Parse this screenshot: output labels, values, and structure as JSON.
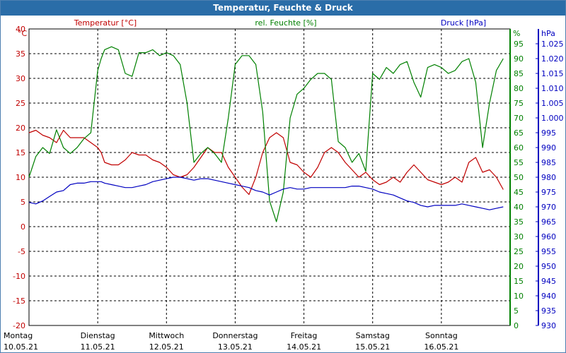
{
  "window": {
    "title": "Temperatur, Feuchte & Druck"
  },
  "colors": {
    "temperature": "#c00000",
    "humidity": "#008000",
    "pressure": "#0000c0",
    "grid": "#000000",
    "title_bar": "#2a6da8"
  },
  "chart_data": {
    "type": "line",
    "title": "Temperatur, Feuchte & Druck",
    "grid": true,
    "x_categories": [
      {
        "day": "Montag",
        "date": "10.05.21"
      },
      {
        "day": "Dienstag",
        "date": "11.05.21"
      },
      {
        "day": "Mittwoch",
        "date": "12.05.21"
      },
      {
        "day": "Donnerstag",
        "date": "13.05.21"
      },
      {
        "day": "Freitag",
        "date": "14.05.21"
      },
      {
        "day": "Samstag",
        "date": "15.05.21"
      },
      {
        "day": "Sonntag",
        "date": "16.05.21"
      }
    ],
    "xlim": [
      0,
      7
    ],
    "axes": {
      "temperature": {
        "label": "Temperatur [°C]",
        "unit": "°C",
        "ylim": [
          -20,
          40
        ],
        "ticks": [
          "40",
          "35",
          "30",
          "25",
          "20",
          "15",
          "10",
          "5",
          "0",
          "-5",
          "-10",
          "-15",
          "-20"
        ]
      },
      "humidity": {
        "label": "rel. Feuchte [%]",
        "unit": "%",
        "ylim": [
          0,
          100
        ],
        "ticks": [
          "95",
          "90",
          "85",
          "80",
          "75",
          "70",
          "65",
          "60",
          "55",
          "50",
          "45",
          "40",
          "35",
          "30",
          "25",
          "20",
          "15",
          "10",
          "5",
          "0"
        ]
      },
      "pressure": {
        "label": "Druck [hPa]",
        "unit": "hPa",
        "ylim": [
          930,
          1030
        ],
        "ticks": [
          "1.025",
          "1.020",
          "1.015",
          "1.010",
          "1.005",
          "1.000",
          "995",
          "990",
          "985",
          "980",
          "975",
          "970",
          "965",
          "960",
          "955",
          "950",
          "945",
          "940",
          "935",
          "930"
        ]
      }
    },
    "series": [
      {
        "name": "Temperatur [°C]",
        "axis": "temperature",
        "x": [
          0,
          0.1,
          0.2,
          0.3,
          0.4,
          0.5,
          0.6,
          0.7,
          0.8,
          0.9,
          1.0,
          1.05,
          1.1,
          1.2,
          1.3,
          1.4,
          1.5,
          1.6,
          1.7,
          1.8,
          1.9,
          2.0,
          2.1,
          2.2,
          2.3,
          2.4,
          2.5,
          2.6,
          2.7,
          2.8,
          2.9,
          3.0,
          3.1,
          3.2,
          3.3,
          3.4,
          3.5,
          3.6,
          3.7,
          3.8,
          3.9,
          4.0,
          4.1,
          4.2,
          4.3,
          4.4,
          4.5,
          4.6,
          4.7,
          4.8,
          4.9,
          5.0,
          5.1,
          5.2,
          5.3,
          5.4,
          5.5,
          5.6,
          5.7,
          5.8,
          5.9,
          6.0,
          6.1,
          6.2,
          6.3,
          6.4,
          6.5,
          6.6,
          6.7,
          6.8,
          6.9
        ],
        "values": [
          19,
          19.5,
          18.5,
          18,
          17,
          19.5,
          18,
          18,
          18,
          17,
          16,
          15,
          13,
          12.5,
          12.5,
          13.5,
          15,
          14.5,
          14.5,
          13.5,
          13,
          12,
          10.5,
          10,
          10.5,
          12,
          14,
          16,
          15,
          15,
          12,
          10,
          8,
          6.5,
          10,
          15,
          18,
          19,
          18,
          13,
          12.5,
          11,
          10,
          12,
          15,
          16,
          15,
          13,
          11.5,
          10,
          11,
          9.5,
          8.5,
          9,
          10,
          9,
          11,
          12.5,
          11,
          9.5,
          9,
          8.5,
          9,
          10,
          9,
          13,
          14,
          11,
          11.5,
          10,
          7.5
        ]
      },
      {
        "name": "rel. Feuchte [%]",
        "axis": "humidity",
        "x": [
          0,
          0.1,
          0.2,
          0.3,
          0.4,
          0.5,
          0.6,
          0.7,
          0.8,
          0.9,
          1.0,
          1.05,
          1.1,
          1.2,
          1.3,
          1.4,
          1.5,
          1.6,
          1.7,
          1.8,
          1.9,
          2.0,
          2.1,
          2.2,
          2.3,
          2.4,
          2.5,
          2.6,
          2.7,
          2.8,
          2.9,
          3.0,
          3.1,
          3.2,
          3.3,
          3.4,
          3.5,
          3.6,
          3.7,
          3.8,
          3.9,
          4.0,
          4.1,
          4.2,
          4.3,
          4.4,
          4.5,
          4.6,
          4.7,
          4.8,
          4.9,
          5.0,
          5.1,
          5.2,
          5.3,
          5.4,
          5.5,
          5.6,
          5.7,
          5.8,
          5.9,
          6.0,
          6.1,
          6.2,
          6.3,
          6.4,
          6.5,
          6.6,
          6.7,
          6.8,
          6.9
        ],
        "values": [
          50,
          57,
          60,
          58,
          66,
          60,
          58,
          60,
          63,
          65,
          86,
          90,
          93,
          94,
          93,
          85,
          84,
          92,
          92,
          93,
          91,
          92,
          91,
          88,
          75,
          55,
          58,
          60,
          58,
          55,
          70,
          88,
          91,
          91,
          88,
          72,
          42,
          35,
          45,
          70,
          78,
          80,
          83,
          85,
          85,
          83,
          62,
          60,
          55,
          58,
          52,
          85,
          83,
          87,
          85,
          88,
          89,
          82,
          77,
          87,
          88,
          87,
          85,
          86,
          89,
          90,
          82,
          60,
          75,
          86,
          90
        ]
      },
      {
        "name": "Druck [hPa]",
        "axis": "pressure",
        "x": [
          0,
          0.1,
          0.2,
          0.3,
          0.4,
          0.5,
          0.6,
          0.7,
          0.8,
          0.9,
          1.0,
          1.05,
          1.1,
          1.2,
          1.3,
          1.4,
          1.5,
          1.6,
          1.7,
          1.8,
          1.9,
          2.0,
          2.1,
          2.2,
          2.3,
          2.4,
          2.5,
          2.6,
          2.7,
          2.8,
          2.9,
          3.0,
          3.1,
          3.2,
          3.3,
          3.4,
          3.5,
          3.6,
          3.7,
          3.8,
          3.9,
          4.0,
          4.1,
          4.2,
          4.3,
          4.4,
          4.5,
          4.6,
          4.7,
          4.8,
          4.9,
          5.0,
          5.1,
          5.2,
          5.3,
          5.4,
          5.5,
          5.6,
          5.7,
          5.8,
          5.9,
          6.0,
          6.1,
          6.2,
          6.3,
          6.4,
          6.5,
          6.6,
          6.7,
          6.8,
          6.9
        ],
        "values": [
          971.5,
          971,
          972,
          973.5,
          975,
          975.5,
          977.5,
          978,
          978,
          978.5,
          978.5,
          978.5,
          978,
          977.5,
          977,
          976.5,
          976.5,
          977,
          977.5,
          978.5,
          979,
          979.5,
          980,
          980,
          979.5,
          979,
          979.5,
          979.5,
          979,
          978.5,
          978,
          977.5,
          977,
          976.5,
          975.5,
          975,
          974,
          975,
          976,
          976.5,
          976,
          976,
          976.5,
          976.5,
          976.5,
          976.5,
          976.5,
          976.5,
          977,
          977,
          976.5,
          976,
          975,
          974.5,
          974,
          973,
          972,
          971.5,
          970.5,
          970,
          970.5,
          970.5,
          970.5,
          970.5,
          971,
          970.5,
          970,
          969.5,
          969,
          969.5,
          970
        ]
      }
    ]
  }
}
